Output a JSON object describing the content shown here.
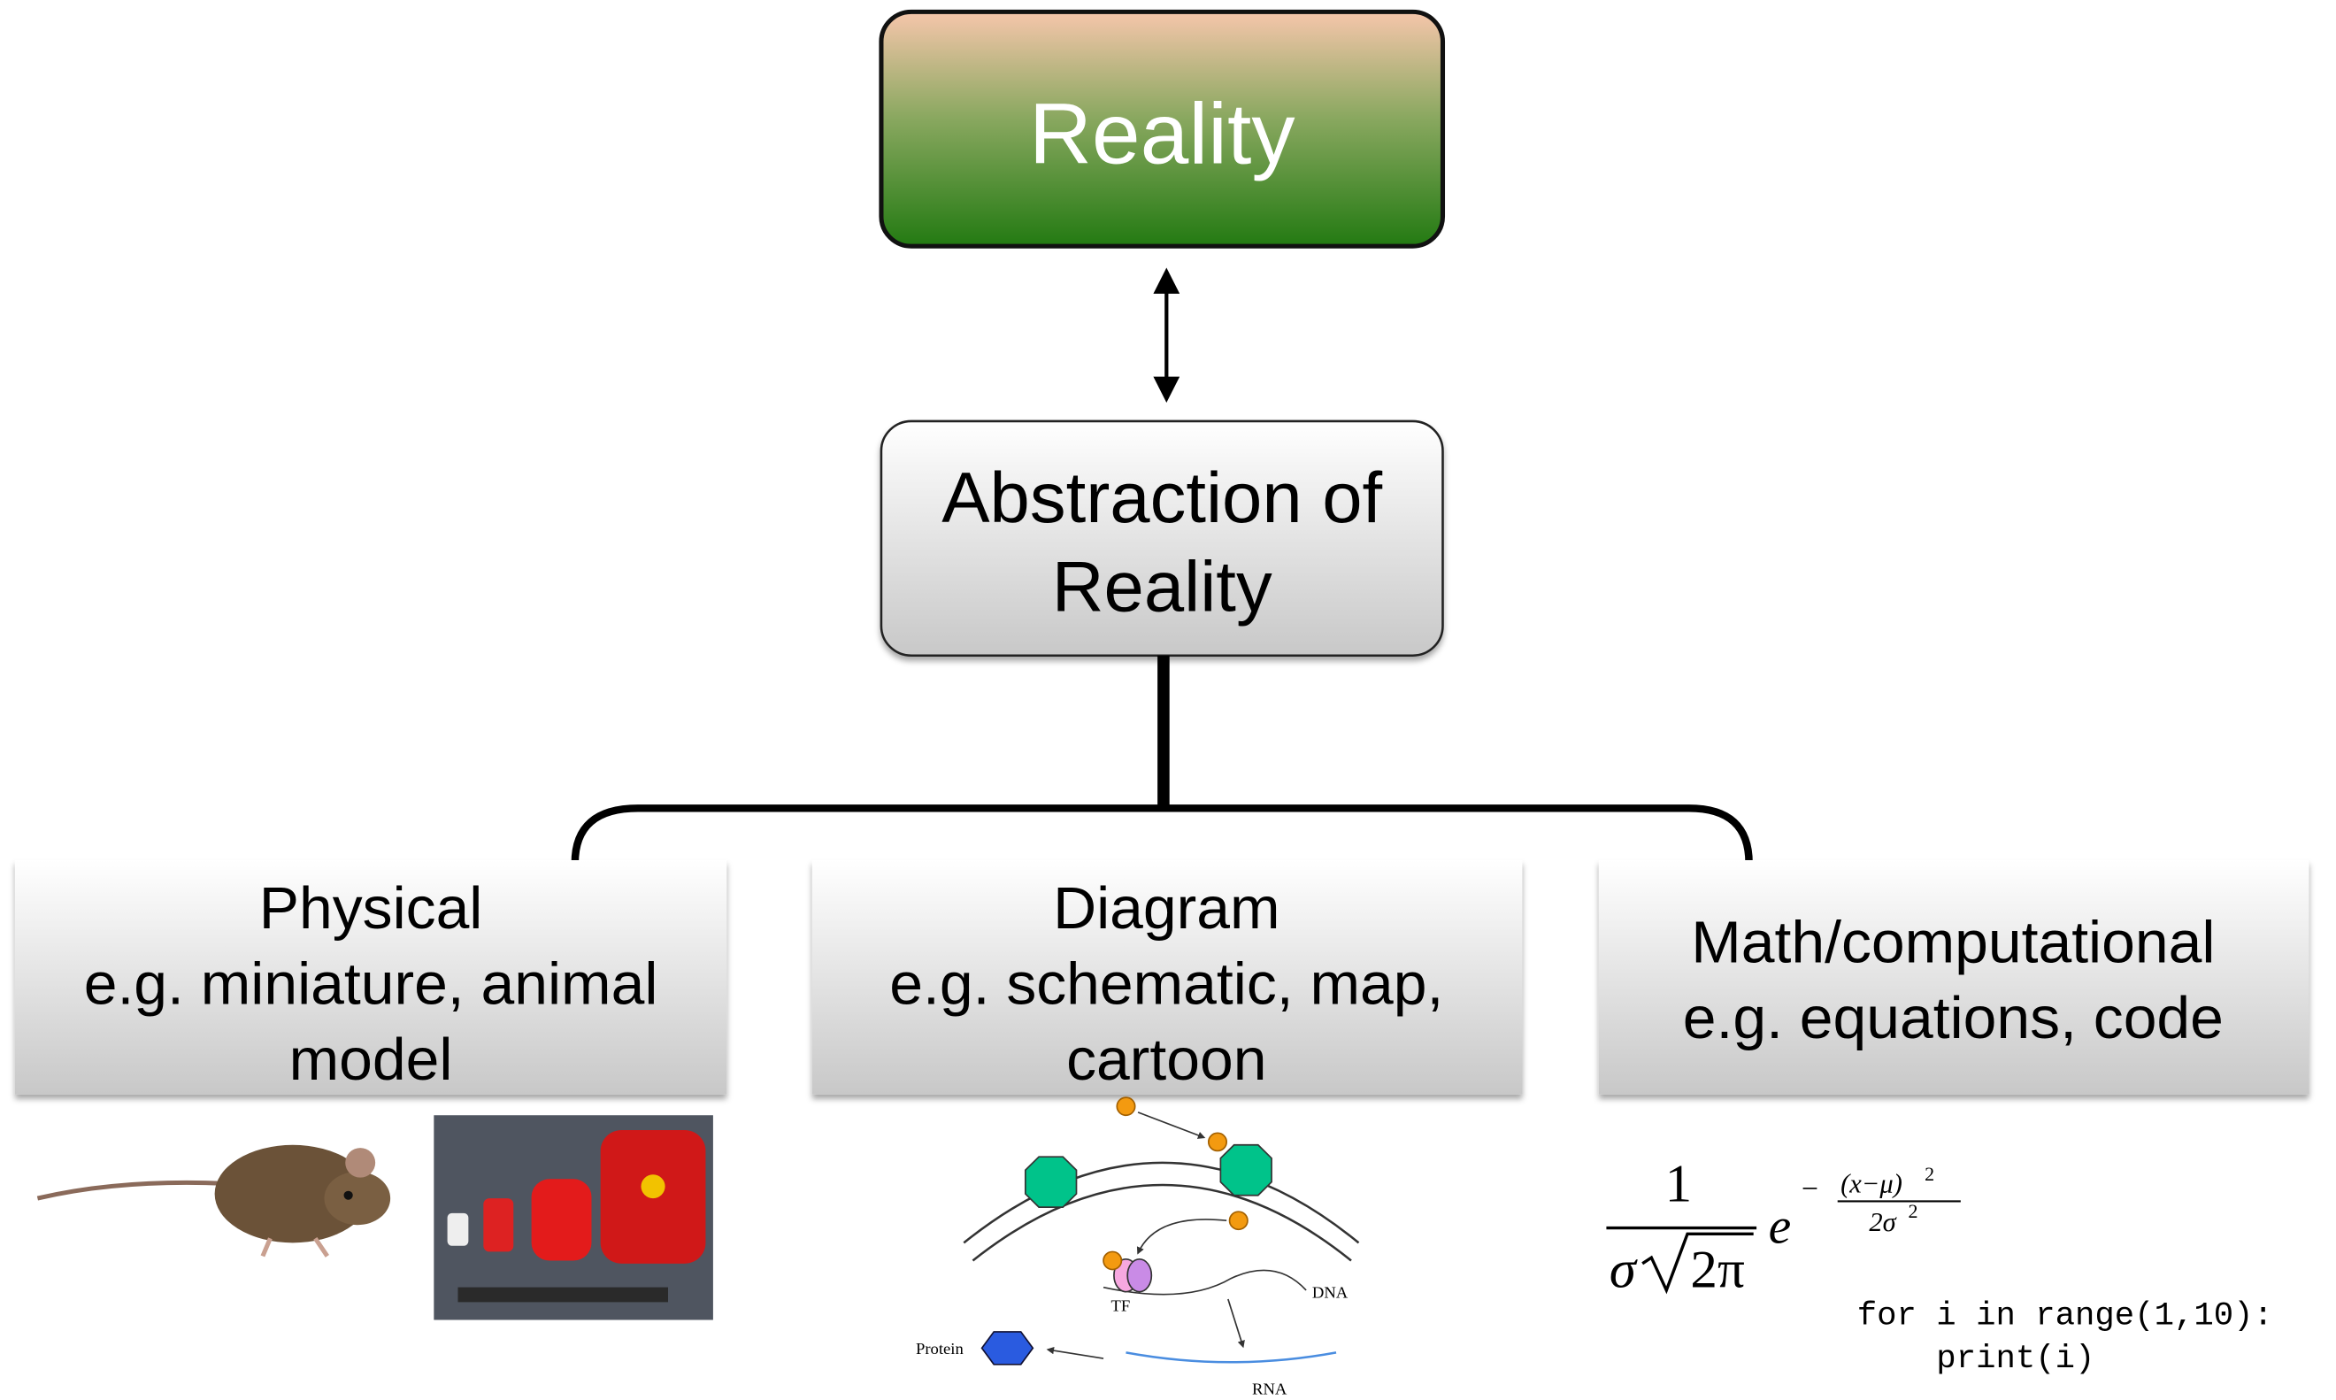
{
  "nodes": {
    "reality": "Reality",
    "abstraction": [
      "Abstraction of",
      "Reality"
    ]
  },
  "categories": [
    {
      "lines": [
        "Physical",
        "e.g. miniature, animal",
        "model"
      ]
    },
    {
      "lines": [
        "Diagram",
        "e.g. schematic, map,",
        "cartoon"
      ]
    },
    {
      "lines": [
        "Math/computational",
        "e.g. equations, code"
      ]
    }
  ],
  "schematic_labels": {
    "tf": "TF",
    "dna": "DNA",
    "protein": "Protein",
    "rna": "RNA"
  },
  "equation": {
    "numerator": "1",
    "sigma": "σ",
    "radicand": "2π",
    "base": "e",
    "sign": "−",
    "exp_numerator": "(x−μ)",
    "exp_numerator_power": "2",
    "exp_denominator": "2σ",
    "exp_denominator_power": "2"
  },
  "code": [
    "for i in range(1,10):",
    "    print(i)"
  ]
}
